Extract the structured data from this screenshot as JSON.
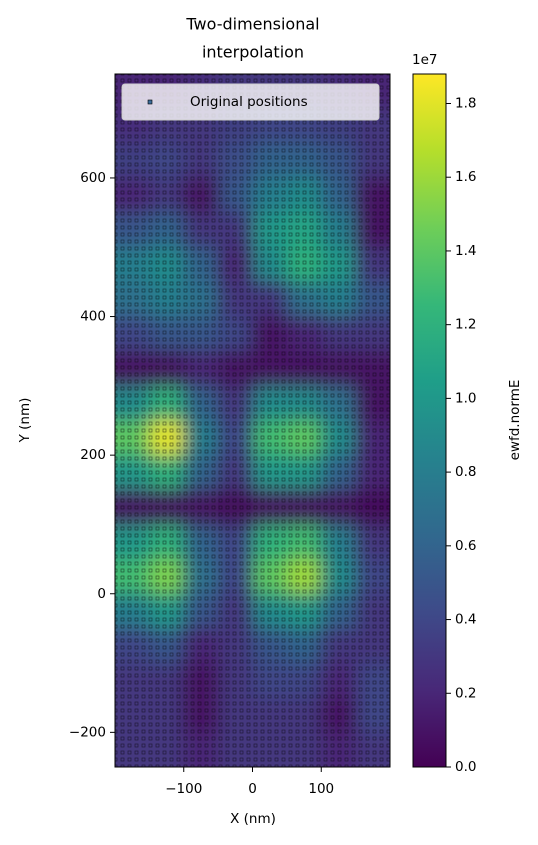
{
  "chart_data": {
    "type": "heatmap",
    "title": [
      "Two-dimensional",
      "interpolation"
    ],
    "x_label": "X (nm)",
    "y_label": "Y (nm)",
    "colorbar_label": "ewfd.normE",
    "colorbar_offset": "1e7",
    "colormap": "viridis",
    "legend": "Original positions",
    "legend_loc": "upper right",
    "xlim": [
      -200,
      200
    ],
    "ylim": [
      -250,
      750
    ],
    "xticks": [
      {
        "value": -100,
        "label": "−100"
      },
      0,
      100
    ],
    "yticks": [
      {
        "value": -200,
        "label": "−200"
      },
      0,
      200,
      400,
      600
    ],
    "clim": [
      0,
      1.88
    ],
    "cticks": [
      {
        "value": 0,
        "label": "0.0"
      },
      0.2,
      0.4,
      0.6,
      0.8,
      {
        "value": 1,
        "label": "1.0"
      },
      1.2,
      1.4,
      1.6,
      1.8
    ],
    "x": [
      -175,
      -125,
      -75,
      -25,
      25,
      75,
      125,
      175
    ],
    "y": [
      725,
      675,
      625,
      575,
      525,
      475,
      425,
      375,
      325,
      275,
      225,
      175,
      125,
      75,
      25,
      -25,
      -75,
      -125,
      -175,
      -225
    ],
    "z": [
      [
        0.2,
        0.2,
        0.25,
        0.3,
        0.3,
        0.3,
        0.25,
        0.2
      ],
      [
        0.25,
        0.3,
        0.3,
        0.35,
        0.4,
        0.4,
        0.35,
        0.3
      ],
      [
        0.35,
        0.4,
        0.3,
        0.45,
        0.6,
        0.6,
        0.5,
        0.3
      ],
      [
        0.2,
        0.3,
        0.1,
        0.5,
        0.8,
        0.9,
        0.6,
        0.1
      ],
      [
        0.5,
        0.6,
        0.3,
        0.3,
        1.0,
        1.1,
        0.8,
        0.1
      ],
      [
        0.8,
        0.9,
        0.6,
        0.2,
        0.9,
        1.2,
        1.0,
        0.3
      ],
      [
        0.7,
        0.8,
        0.7,
        0.3,
        0.3,
        0.7,
        0.8,
        0.5
      ],
      [
        0.4,
        0.5,
        0.5,
        0.4,
        0.1,
        0.2,
        0.3,
        0.3
      ],
      [
        0.1,
        0.1,
        0.2,
        0.1,
        0.1,
        0.1,
        0.1,
        0.1
      ],
      [
        0.9,
        1.2,
        0.6,
        0.3,
        0.9,
        0.9,
        0.7,
        0.1
      ],
      [
        1.4,
        1.8,
        0.8,
        0.4,
        1.3,
        1.4,
        0.9,
        0.2
      ],
      [
        1.0,
        1.2,
        0.6,
        0.3,
        1.0,
        1.0,
        0.6,
        0.2
      ],
      [
        0.1,
        0.1,
        0.1,
        0.05,
        0.1,
        0.1,
        0.1,
        0.05
      ],
      [
        1.0,
        1.2,
        0.6,
        0.4,
        1.2,
        1.3,
        0.8,
        0.3
      ],
      [
        1.3,
        1.5,
        0.7,
        0.4,
        1.4,
        1.6,
        0.9,
        0.4
      ],
      [
        0.8,
        1.0,
        0.5,
        0.3,
        0.9,
        1.0,
        0.6,
        0.3
      ],
      [
        0.4,
        0.5,
        0.2,
        0.3,
        0.5,
        0.6,
        0.3,
        0.3
      ],
      [
        0.3,
        0.3,
        0.1,
        0.3,
        0.4,
        0.4,
        0.2,
        0.4
      ],
      [
        0.3,
        0.3,
        0.1,
        0.3,
        0.3,
        0.3,
        0.1,
        0.4
      ],
      [
        0.3,
        0.3,
        0.2,
        0.3,
        0.3,
        0.3,
        0.2,
        0.3
      ]
    ]
  }
}
